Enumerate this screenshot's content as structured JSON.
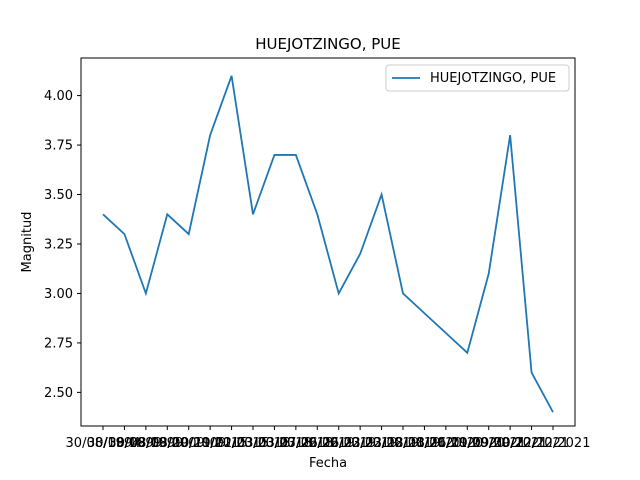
{
  "chart_data": {
    "type": "line",
    "title": "HUEJOTZINGO, PUE",
    "xlabel": "Fecha",
    "ylabel": "Magnitud",
    "ylim": [
      2.33,
      4.19
    ],
    "y_ticks": [
      "2.50",
      "2.75",
      "3.00",
      "3.25",
      "3.50",
      "3.75",
      "4.00"
    ],
    "y_tick_values": [
      2.5,
      2.75,
      3.0,
      3.25,
      3.5,
      3.75,
      4.0
    ],
    "x_tick_labels": [
      "30/08/1994",
      "30/08/1999",
      "30/08/1999",
      "08/09/2009",
      "08/09/2009",
      "10/11/2015",
      "19/11/2015",
      "02/03/2018",
      "03/03/2018",
      "03/03/2018",
      "07/02/2019",
      "26/02/2019",
      "26/02/2019",
      "23/02/2019",
      "23/02/2019",
      "18/01/2020",
      "18/01/2020",
      "26/11/2020",
      "09/09/2021",
      "09/09/2021",
      "30/12/2021",
      "22/12/2021"
    ],
    "grid": false,
    "legend_position": "top-right",
    "series": [
      {
        "name": "HUEJOTZINGO, PUE",
        "color": "#1f77b4",
        "values": [
          3.4,
          3.3,
          3.0,
          3.4,
          3.3,
          3.8,
          4.1,
          3.4,
          3.7,
          3.7,
          3.4,
          3.0,
          3.2,
          3.5,
          3.0,
          2.9,
          2.8,
          2.7,
          3.1,
          3.8,
          2.6,
          2.4
        ]
      }
    ]
  }
}
